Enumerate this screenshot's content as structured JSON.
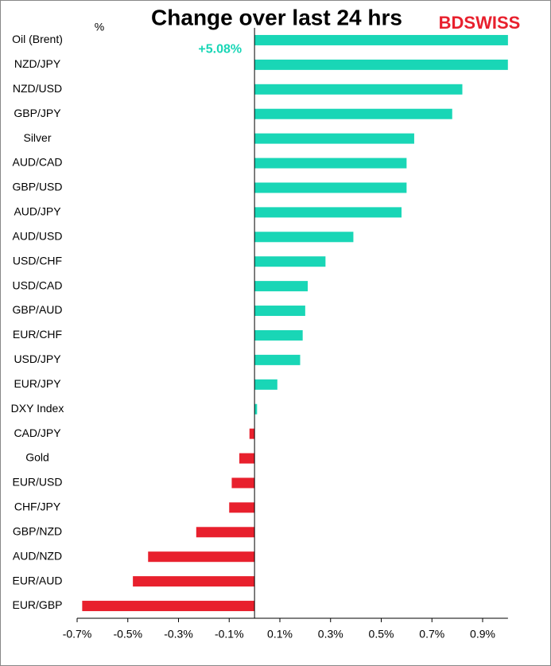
{
  "chart_data": {
    "type": "hbar",
    "title": "Change over last 24 hrs",
    "unit_label": "%",
    "logo": "BDSWISS",
    "categories": [
      "Oil (Brent)",
      "NZD/JPY",
      "NZD/USD",
      "GBP/JPY",
      "Silver",
      "AUD/CAD",
      "GBP/USD",
      "AUD/JPY",
      "AUD/USD",
      "USD/CHF",
      "USD/CAD",
      "GBP/AUD",
      "EUR/CHF",
      "USD/JPY",
      "EUR/JPY",
      "DXY Index",
      "CAD/JPY",
      "Gold",
      "EUR/USD",
      "CHF/JPY",
      "GBP/NZD",
      "AUD/NZD",
      "EUR/AUD",
      "EUR/GBP"
    ],
    "values": [
      5.08,
      1.0,
      0.82,
      0.78,
      0.63,
      0.6,
      0.6,
      0.58,
      0.39,
      0.28,
      0.21,
      0.2,
      0.19,
      0.18,
      0.09,
      0.01,
      -0.02,
      -0.06,
      -0.09,
      -0.1,
      -0.23,
      -0.42,
      -0.48,
      -0.68
    ],
    "value_labels": [
      "+5.08%",
      null,
      null,
      null,
      null,
      null,
      null,
      null,
      null,
      null,
      null,
      null,
      null,
      null,
      null,
      null,
      null,
      null,
      null,
      null,
      null,
      null,
      null,
      null
    ],
    "positive_color": "#19d6b6",
    "negative_color": "#e8202d",
    "xlim": [
      -0.7,
      1.0
    ],
    "xticks": [
      {
        "value": -0.7,
        "label": "-0.7%"
      },
      {
        "value": -0.5,
        "label": "-0.5%"
      },
      {
        "value": -0.3,
        "label": "-0.3%"
      },
      {
        "value": -0.1,
        "label": "-0.1%"
      },
      {
        "value": 0.1,
        "label": "0.1%"
      },
      {
        "value": 0.3,
        "label": "0.3%"
      },
      {
        "value": 0.5,
        "label": "0.5%"
      },
      {
        "value": 0.7,
        "label": "0.7%"
      },
      {
        "value": 0.9,
        "label": "0.9%"
      }
    ],
    "grid": false
  }
}
